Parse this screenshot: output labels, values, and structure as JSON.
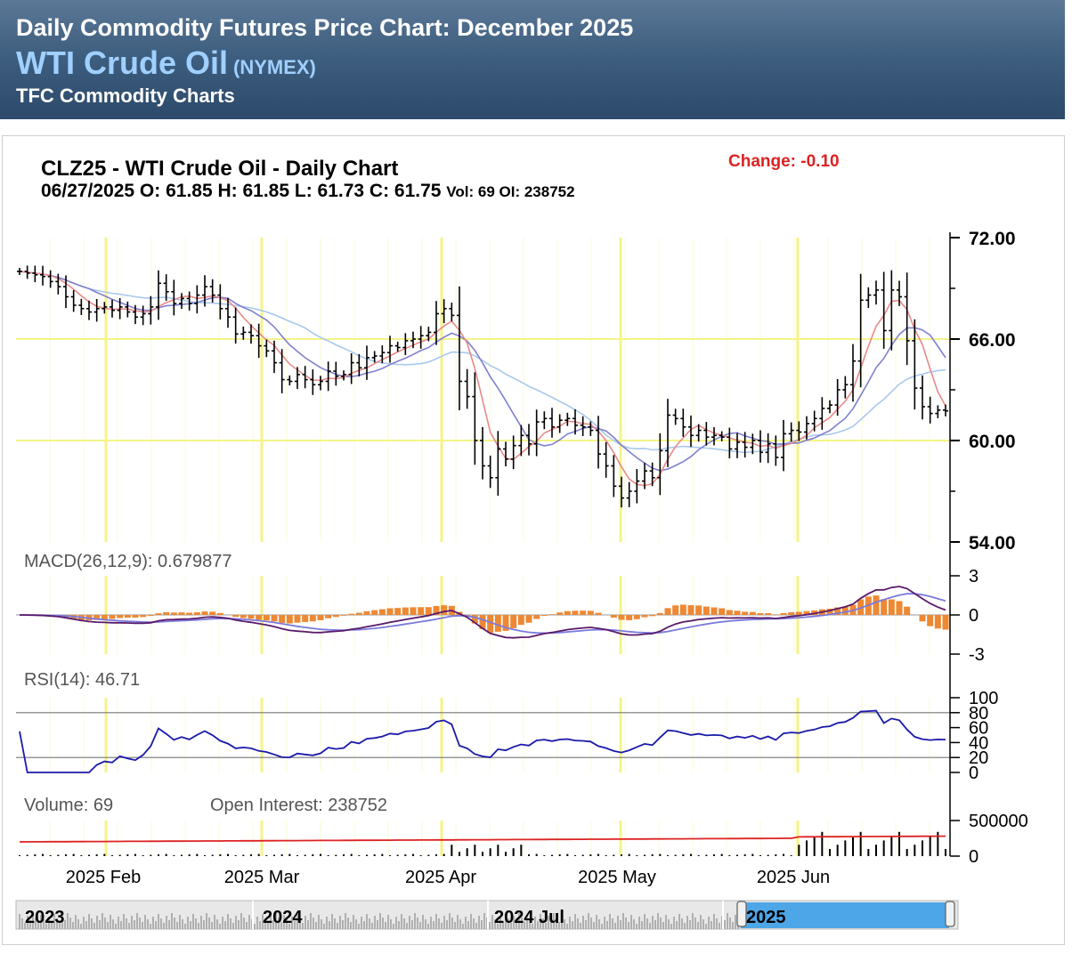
{
  "header": {
    "line1": "Daily Commodity Futures Price Chart: December 2025",
    "line2": "WTI Crude Oil",
    "exchange": "(NYMEX)",
    "line3": "TFC Commodity Charts"
  },
  "chart_header": {
    "title": "CLZ25 - WTI Crude Oil - Daily Chart",
    "ohlc": "06/27/2025 O: 61.85 H: 61.85 L: 61.73 C: 61.75",
    "vol_oi": "Vol: 69 OI: 238752",
    "change": "Change: -0.10"
  },
  "colors": {
    "header_bg": "#3f5f80",
    "price_bar": "#000000",
    "ma_fast": "#e88a8a",
    "ma_mid": "#8080d0",
    "ma_slow": "#a8c8ec",
    "macd_line": "#5a1a6a",
    "macd_signal": "#7a7adc",
    "macd_hist": "#ee8833",
    "rsi_line": "#1a1aaa",
    "volume_bar": "#000000",
    "oi_line": "#dd2222",
    "month_grid": "#f4f488",
    "navigator_fill": "#4da6e8"
  },
  "panels": {
    "macd_label": "MACD(26,12,9): 0.679877",
    "rsi_label": "RSI(14): 46.71",
    "volume_label": "Volume: 69",
    "oi_label": "Open Interest: 238752"
  },
  "navigator": {
    "labels": [
      "2023",
      "2024",
      "2024 Jul",
      "2025"
    ]
  },
  "chart_data": [
    {
      "type": "ohlc",
      "name": "price",
      "y_ticks": [
        "72.00",
        "66.00",
        "60.00",
        "54.00"
      ],
      "ylim": [
        54,
        72
      ],
      "x_labels": [
        "2025 Feb",
        "2025 Mar",
        "2025 Apr",
        "2025 May",
        "2025 Jun"
      ],
      "closes": [
        70.0,
        69.9,
        69.8,
        69.7,
        69.4,
        69.1,
        68.5,
        68.0,
        67.8,
        67.6,
        67.8,
        67.9,
        67.7,
        67.9,
        67.6,
        67.3,
        67.5,
        67.9,
        69.3,
        68.8,
        68.1,
        68.4,
        68.1,
        68.6,
        69.1,
        68.6,
        67.8,
        67.3,
        66.3,
        66.4,
        66.2,
        65.6,
        65.3,
        64.6,
        63.6,
        63.5,
        63.9,
        63.6,
        63.3,
        63.5,
        64.1,
        63.8,
        63.9,
        64.6,
        64.3,
        64.9,
        65.0,
        65.2,
        65.6,
        65.5,
        65.9,
        66.0,
        66.2,
        66.4,
        67.5,
        67.8,
        67.4,
        63.5,
        62.6,
        60.0,
        58.5,
        57.8,
        59.5,
        58.9,
        59.7,
        60.3,
        59.8,
        61.1,
        61.3,
        60.8,
        61.2,
        61.3,
        60.9,
        60.8,
        60.6,
        59.2,
        58.5,
        57.3,
        56.6,
        57.0,
        57.6,
        58.2,
        57.8,
        59.4,
        61.5,
        61.3,
        60.8,
        60.3,
        60.6,
        60.2,
        60.3,
        60.2,
        59.5,
        59.9,
        59.6,
        60.0,
        59.3,
        59.8,
        59.0,
        60.4,
        60.6,
        60.5,
        61.0,
        61.3,
        61.9,
        62.1,
        63.0,
        63.3,
        64.7,
        68.3,
        68.6,
        68.9,
        66.5,
        68.9,
        68.5,
        65.9,
        63.1,
        62.0,
        61.6,
        61.8,
        61.75
      ],
      "series": [
        {
          "name": "",
          "note_color": "ma_fast"
        },
        {
          "name": "",
          "note_color": "ma_mid"
        },
        {
          "name": "",
          "note_color": "ma_slow"
        }
      ]
    },
    {
      "type": "line",
      "name": "macd",
      "y_ticks": [
        "3",
        "0",
        "-3"
      ],
      "ylim": [
        -3,
        3
      ]
    },
    {
      "type": "line",
      "name": "rsi",
      "y_ticks": [
        "100",
        "80",
        "60",
        "40",
        "20",
        "0"
      ],
      "ylim": [
        0,
        100
      ],
      "reference_lines": [
        20,
        80
      ]
    },
    {
      "type": "bar",
      "name": "volume",
      "y_ticks": [
        "500000",
        "0"
      ],
      "ylim": [
        0,
        500000
      ]
    }
  ]
}
